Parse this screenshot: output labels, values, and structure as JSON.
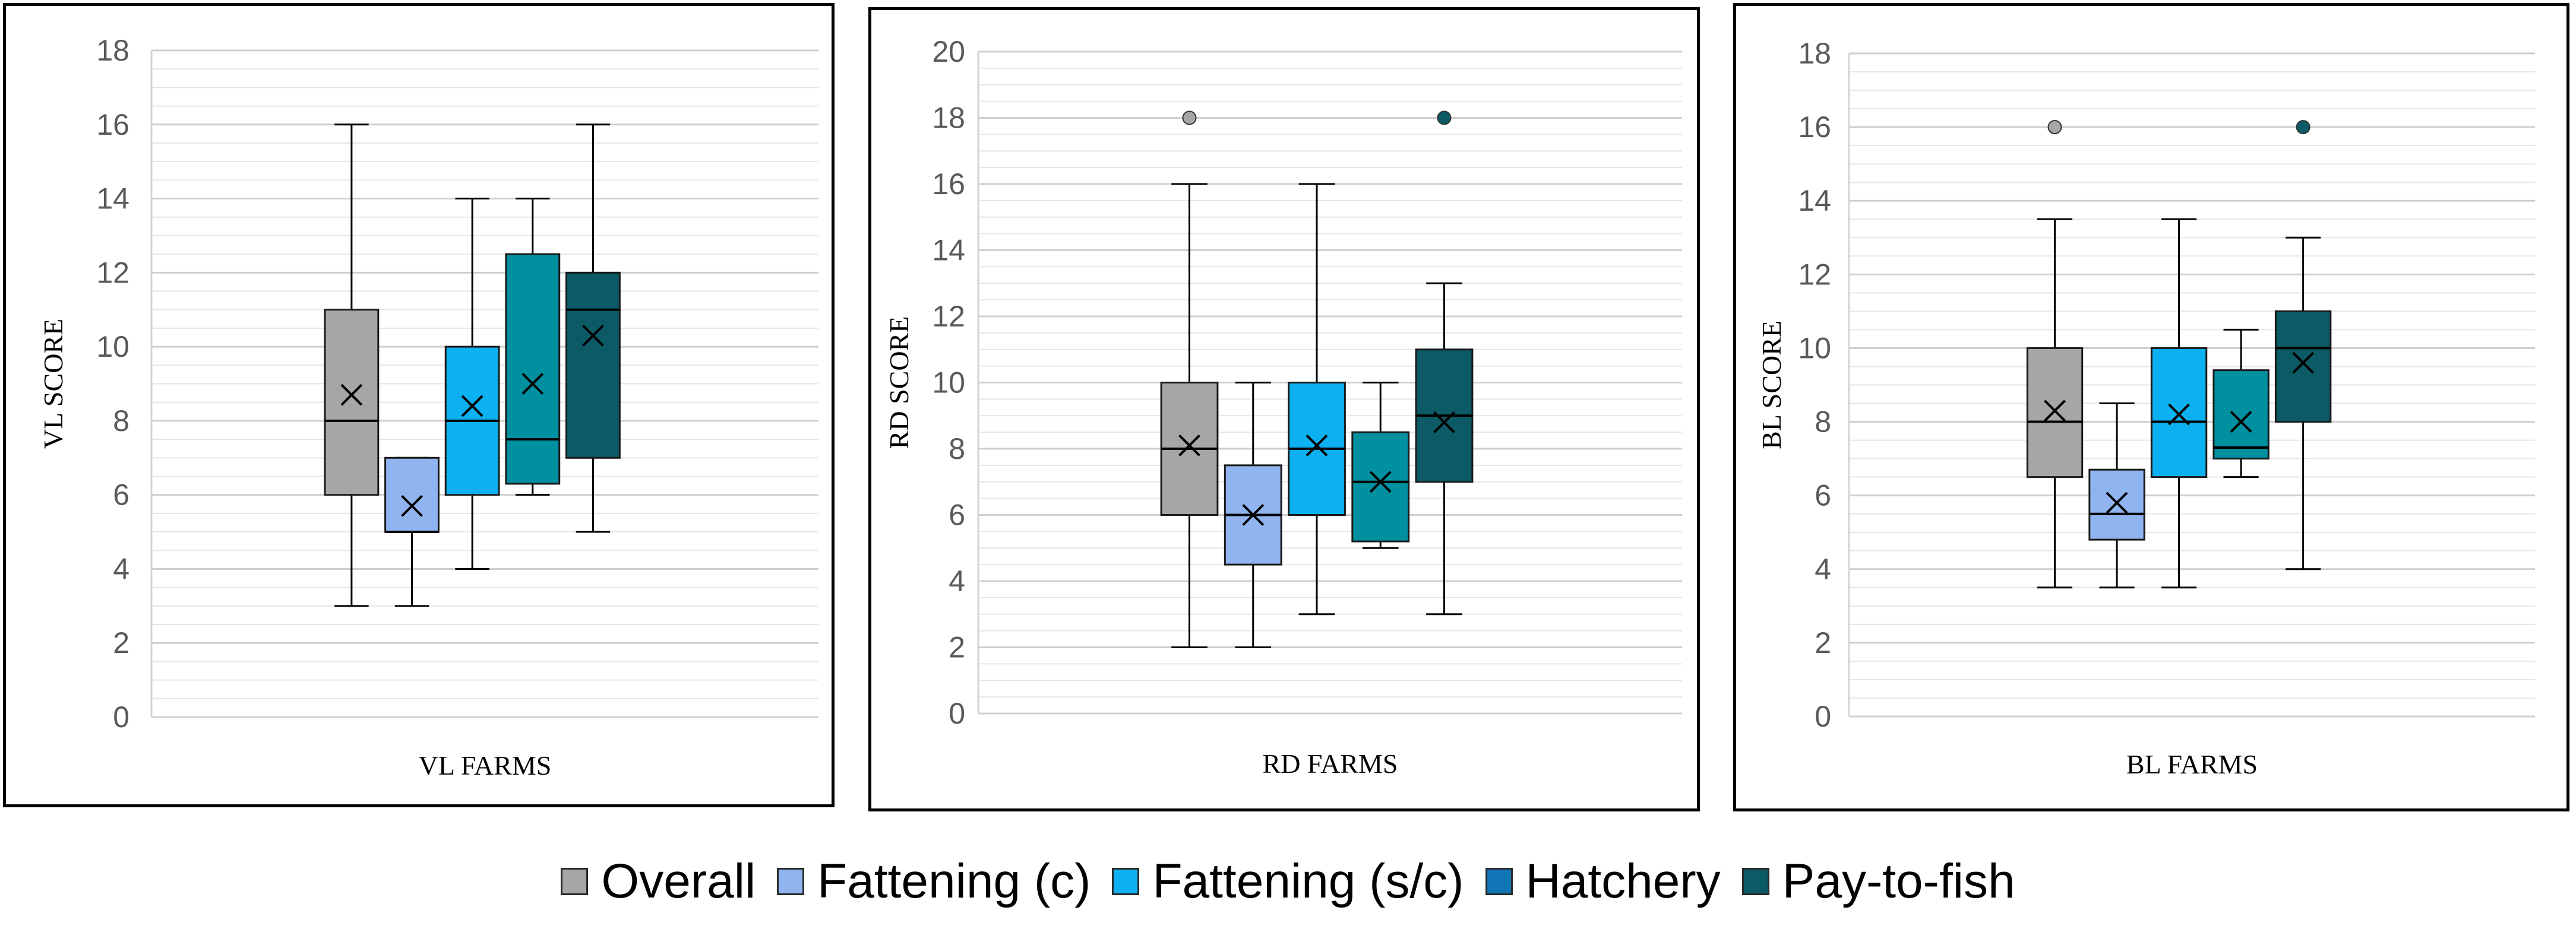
{
  "colors": {
    "Overall": "#a6a6a6",
    "Fattening (c)": "#8fb4f0",
    "Fattening (s/c)": "#0db0f0",
    "Hatchery": "#0090a0",
    "Pay-to-fish": "#0b5a66",
    "legend_Hatchery": "#1075b5"
  },
  "legend": [
    {
      "label": "Overall",
      "color_key": "Overall"
    },
    {
      "label": "Fattening (c)",
      "color_key": "Fattening (c)"
    },
    {
      "label": "Fattening (s/c)",
      "color_key": "Fattening (s/c)"
    },
    {
      "label": "Hatchery",
      "color_key": "legend_Hatchery"
    },
    {
      "label": "Pay-to-fish",
      "color_key": "Pay-to-fish"
    }
  ],
  "chart_data": [
    {
      "type": "box",
      "title": "",
      "xlabel": "VL FARMS",
      "ylabel": "VL SCORE",
      "ylim": [
        0,
        18
      ],
      "ytick_step": 2,
      "yticks": [
        "0",
        "2",
        "4",
        "6",
        "8",
        "10",
        "12",
        "14",
        "16",
        "18"
      ],
      "minor_grid_step": 0.5,
      "series": [
        {
          "name": "Overall",
          "min": 3,
          "q1": 6,
          "median": 8,
          "q3": 11,
          "max": 16,
          "mean": 8.7,
          "outliers": []
        },
        {
          "name": "Fattening (c)",
          "min": 3,
          "q1": 5,
          "median": 5,
          "q3": 7,
          "max": 7,
          "mean": 5.7,
          "outliers": []
        },
        {
          "name": "Fattening (s/c)",
          "min": 4,
          "q1": 6,
          "median": 8,
          "q3": 10,
          "max": 14,
          "mean": 8.4,
          "outliers": []
        },
        {
          "name": "Hatchery",
          "min": 6,
          "q1": 6.3,
          "median": 7.5,
          "q3": 12.5,
          "max": 14,
          "mean": 9.0,
          "outliers": []
        },
        {
          "name": "Pay-to-fish",
          "min": 5,
          "q1": 7,
          "median": 11,
          "q3": 12,
          "max": 16,
          "mean": 10.3,
          "outliers": []
        }
      ]
    },
    {
      "type": "box",
      "title": "",
      "xlabel": "RD FARMS",
      "ylabel": "RD SCORE",
      "ylim": [
        0,
        20
      ],
      "ytick_step": 2,
      "yticks": [
        "0",
        "2",
        "4",
        "6",
        "8",
        "10",
        "12",
        "14",
        "16",
        "18",
        "20"
      ],
      "minor_grid_step": 0.5,
      "series": [
        {
          "name": "Overall",
          "min": 2,
          "q1": 6,
          "median": 8,
          "q3": 10,
          "max": 16,
          "mean": 8.1,
          "outliers": [
            18
          ]
        },
        {
          "name": "Fattening (c)",
          "min": 2,
          "q1": 4.5,
          "median": 6,
          "q3": 7.5,
          "max": 10,
          "mean": 6.0,
          "outliers": []
        },
        {
          "name": "Fattening (s/c)",
          "min": 3,
          "q1": 6,
          "median": 8,
          "q3": 10,
          "max": 16,
          "mean": 8.1,
          "outliers": []
        },
        {
          "name": "Hatchery",
          "min": 5,
          "q1": 5.2,
          "median": 7,
          "q3": 8.5,
          "max": 10,
          "mean": 7.0,
          "outliers": []
        },
        {
          "name": "Pay-to-fish",
          "min": 3,
          "q1": 7,
          "median": 9,
          "q3": 11,
          "max": 13,
          "mean": 8.8,
          "outliers": [
            18
          ]
        }
      ]
    },
    {
      "type": "box",
      "title": "",
      "xlabel": "BL FARMS",
      "ylabel": "BL SCORE",
      "ylim": [
        0,
        18
      ],
      "ytick_step": 2,
      "yticks": [
        "0",
        "2",
        "4",
        "6",
        "8",
        "10",
        "12",
        "14",
        "16",
        "18"
      ],
      "minor_grid_step": 0.5,
      "series": [
        {
          "name": "Overall",
          "min": 3.5,
          "q1": 6.5,
          "median": 8,
          "q3": 10,
          "max": 13.5,
          "mean": 8.3,
          "outliers": [
            16
          ]
        },
        {
          "name": "Fattening (c)",
          "min": 3.5,
          "q1": 4.8,
          "median": 5.5,
          "q3": 6.7,
          "max": 8.5,
          "mean": 5.8,
          "outliers": []
        },
        {
          "name": "Fattening (s/c)",
          "min": 3.5,
          "q1": 6.5,
          "median": 8,
          "q3": 10,
          "max": 13.5,
          "mean": 8.2,
          "outliers": []
        },
        {
          "name": "Hatchery",
          "min": 6.5,
          "q1": 7,
          "median": 7.3,
          "q3": 9.4,
          "max": 10.5,
          "mean": 8.0,
          "outliers": []
        },
        {
          "name": "Pay-to-fish",
          "min": 4,
          "q1": 8,
          "median": 10,
          "q3": 11,
          "max": 13,
          "mean": 9.6,
          "outliers": [
            16
          ]
        }
      ]
    }
  ]
}
